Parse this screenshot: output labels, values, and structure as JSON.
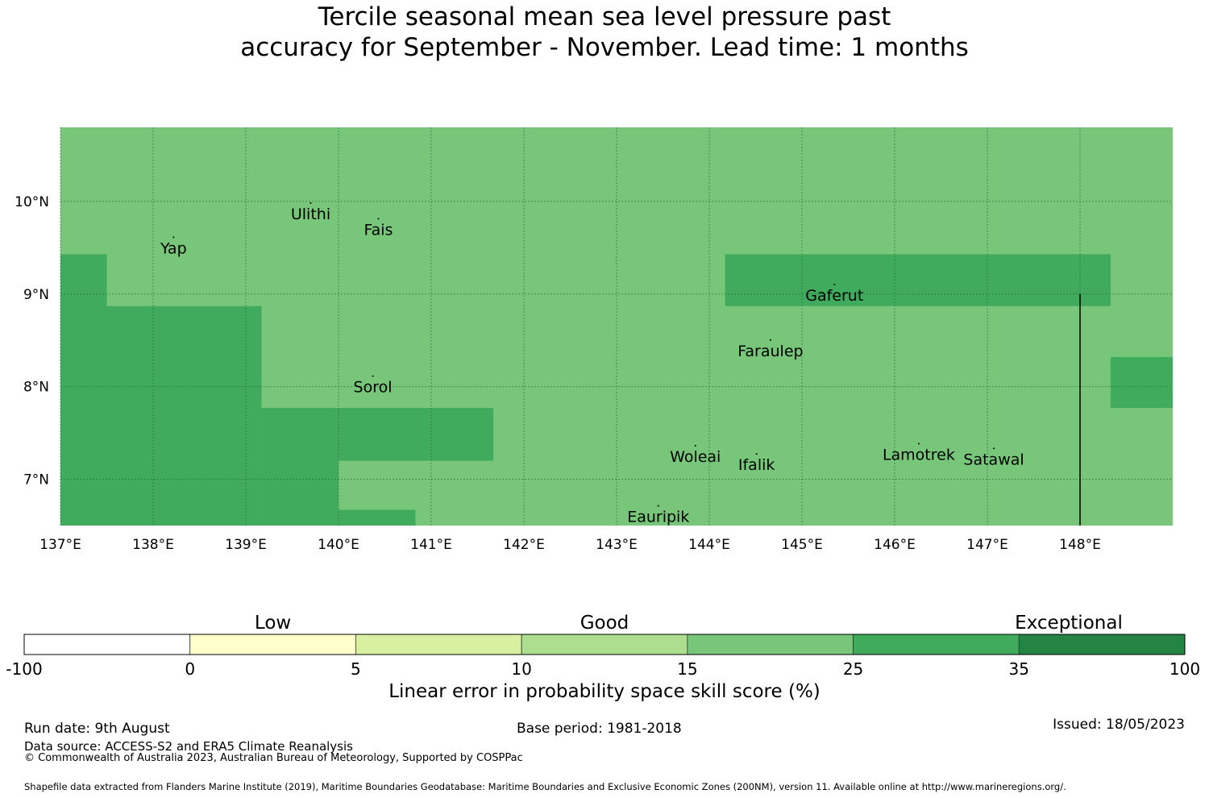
{
  "title": {
    "line1": "Tercile seasonal mean sea level pressure past",
    "line2": "accuracy for September - November. Lead time: 1 months"
  },
  "map": {
    "lon_range": [
      137.0,
      149.0
    ],
    "lat_range": [
      6.5,
      10.8
    ],
    "lon_ticks": [
      "137°E",
      "138°E",
      "139°E",
      "140°E",
      "141°E",
      "142°E",
      "143°E",
      "144°E",
      "145°E",
      "146°E",
      "147°E",
      "148°E"
    ],
    "lat_ticks": [
      "10°N",
      "9°N",
      "8°N",
      "7°N"
    ],
    "background_color": "#78c679",
    "grid": true,
    "regions": [
      {
        "lon": [
          137.0,
          137.5
        ],
        "lat": [
          6.5,
          9.43
        ],
        "color": "#41ab5d"
      },
      {
        "lon": [
          137.5,
          139.17
        ],
        "lat": [
          6.5,
          8.87
        ],
        "color": "#41ab5d"
      },
      {
        "lon": [
          139.17,
          140.0
        ],
        "lat": [
          6.5,
          7.77
        ],
        "color": "#41ab5d"
      },
      {
        "lon": [
          140.0,
          141.67
        ],
        "lat": [
          7.2,
          7.77
        ],
        "color": "#41ab5d"
      },
      {
        "lon": [
          140.0,
          140.83
        ],
        "lat": [
          6.5,
          6.67
        ],
        "color": "#41ab5d"
      },
      {
        "lon": [
          144.17,
          148.33
        ],
        "lat": [
          8.87,
          9.43
        ],
        "color": "#41ab5d"
      },
      {
        "lon": [
          148.33,
          149.0
        ],
        "lat": [
          7.77,
          8.32
        ],
        "color": "#41ab5d"
      }
    ],
    "boundary_line": {
      "lon": 148.0,
      "lat": [
        6.5,
        9.0
      ]
    },
    "places": [
      {
        "name": "Ulithi",
        "lon": 139.7,
        "lat": 9.87
      },
      {
        "name": "Fais",
        "lon": 140.43,
        "lat": 9.7
      },
      {
        "name": "Yap",
        "lon": 138.22,
        "lat": 9.5
      },
      {
        "name": "Gaferut",
        "lon": 145.35,
        "lat": 8.99
      },
      {
        "name": "Faraulep",
        "lon": 144.66,
        "lat": 8.39
      },
      {
        "name": "Sorol",
        "lon": 140.37,
        "lat": 8.0
      },
      {
        "name": "Woleai",
        "lon": 143.85,
        "lat": 7.25
      },
      {
        "name": "Ifalik",
        "lon": 144.51,
        "lat": 7.16
      },
      {
        "name": "Lamotrek",
        "lon": 146.26,
        "lat": 7.27
      },
      {
        "name": "Satawal",
        "lon": 147.07,
        "lat": 7.22
      },
      {
        "name": "Eauripik",
        "lon": 143.45,
        "lat": 6.6
      }
    ]
  },
  "colorbar": {
    "segments": [
      {
        "from": "-100",
        "to": "0",
        "color": "#ffffff"
      },
      {
        "from": "0",
        "to": "5",
        "color": "#ffffcc"
      },
      {
        "from": "5",
        "to": "10",
        "color": "#d9f0a3"
      },
      {
        "from": "10",
        "to": "15",
        "color": "#addd8e"
      },
      {
        "from": "15",
        "to": "25",
        "color": "#78c679"
      },
      {
        "from": "25",
        "to": "35",
        "color": "#41ab5d"
      },
      {
        "from": "35",
        "to": "100",
        "color": "#238443"
      }
    ],
    "ticks": [
      "-100",
      "0",
      "5",
      "10",
      "15",
      "25",
      "35",
      "100"
    ],
    "categories": [
      "Low",
      "Good",
      "Exceptional"
    ],
    "label": "Linear error in probability space skill score (%)"
  },
  "footer": {
    "run_date": "Run date: 9th August",
    "base_period": "Base period: 1981-2018",
    "issued": "Issued: 18/05/2023",
    "data_source": "Data source: ACCESS-S2 and ERA5 Climate Reanalysis",
    "copyright": "© Commonwealth of Australia 2023, Australian Bureau of Meteorology, Supported by COSPPac",
    "shapefile": "Shapefile data extracted from Flanders Marine Institute (2019), Maritime Boundaries Geodatabase: Maritime Boundaries and Exclusive Economic Zones (200NM), version 11. Available online at http://www.marineregions.org/."
  }
}
